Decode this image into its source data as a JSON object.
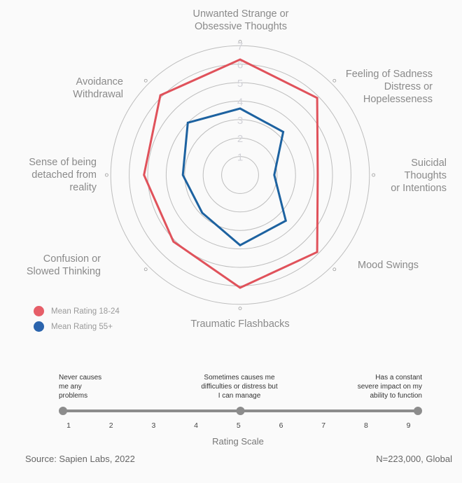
{
  "chart_data": {
    "type": "radar",
    "axes": [
      "Unwanted Strange or Obsessive Thoughts",
      "Feeling of Sadness Distress or Hopelesseness",
      "Suicidal Thoughts or Intentions",
      "Mood Swings",
      "Traumatic Flashbacks",
      "Confusion or Slowed Thinking",
      "Sense of being detached from reality",
      "Avoidance Withdrawal"
    ],
    "axis_label_lines": [
      [
        "Unwanted Strange or",
        "Obsessive Thoughts"
      ],
      [
        "Feeling of Sadness",
        "Distress or",
        "Hopelesseness"
      ],
      [
        "Suicidal",
        "Thoughts",
        "or Intentions"
      ],
      [
        "Mood Swings"
      ],
      [
        "Traumatic Flashbacks"
      ],
      [
        "Confusion or",
        "Slowed Thinking"
      ],
      [
        "Sense of being",
        "detached from",
        "reality"
      ],
      [
        "Avoidance",
        "Withdrawal"
      ]
    ],
    "radial_ticks": [
      "1",
      "2",
      "3",
      "4",
      "5",
      "6",
      "7"
    ],
    "rlim": [
      0,
      7
    ],
    "grid": true,
    "legend_placement": "bottom-left",
    "series": [
      {
        "name": "Mean Rating 18-24",
        "color": "#e0525b",
        "values": [
          6.25,
          5.9,
          4.2,
          5.9,
          6.1,
          5.1,
          5.2,
          6.1
        ]
      },
      {
        "name": "Mean Rating 55+",
        "color": "#1d62a0",
        "values": [
          3.6,
          3.3,
          1.85,
          3.5,
          3.8,
          2.9,
          3.1,
          4.0
        ]
      }
    ]
  },
  "legend": {
    "items": [
      {
        "label": "Mean Rating 18-24",
        "color": "#e65e68"
      },
      {
        "label": "Mean Rating 55+",
        "color": "#2b64ad"
      }
    ]
  },
  "rating_scale": {
    "title": "Rating Scale",
    "ticks": [
      "1",
      "2",
      "3",
      "4",
      "5",
      "6",
      "7",
      "8",
      "9"
    ],
    "notes": {
      "low": [
        "Never causes",
        "me any",
        "problems"
      ],
      "mid": [
        "Sometimes causes me",
        "difficulties or distress but",
        "I can manage"
      ],
      "high": [
        "Has a constant",
        "severe impact on my",
        "ability to function"
      ]
    }
  },
  "footer": {
    "source": "Source: Sapien Labs, 2022",
    "sample": "N=223,000, Global"
  }
}
